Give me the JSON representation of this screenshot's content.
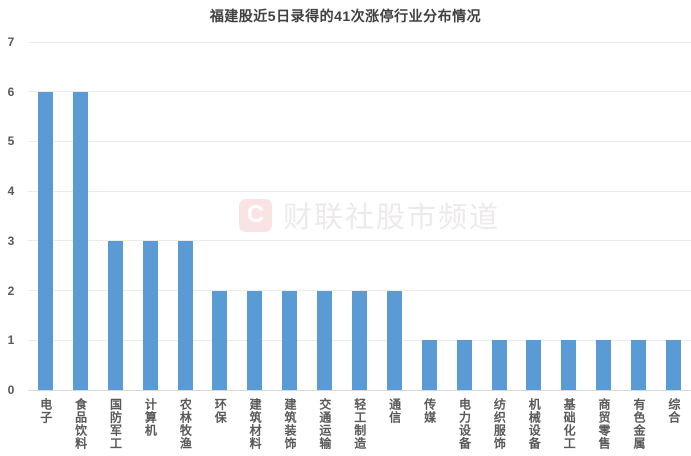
{
  "title": "福建股近5日录得的41次涨停行业分布情况",
  "watermark": {
    "logo_letter": "C",
    "text": "财联社股市频道"
  },
  "colors": {
    "bar": "#5B9BD5",
    "gridline": "#EBEBEB",
    "axis_line": "#D9D9D9",
    "title_text": "#404040",
    "tick_text": "#595959",
    "watermark_logo_bg": "#FAE3E3",
    "watermark_logo_letter": "#FFFFFF",
    "watermark_text": "#EDEAEA"
  },
  "chart_data": {
    "type": "bar",
    "title": "福建股近5日录得的41次涨停行业分布情况",
    "categories": [
      "电子",
      "食品饮料",
      "国防军工",
      "计算机",
      "农林牧渔",
      "环保",
      "建筑材料",
      "建筑装饰",
      "交通运输",
      "轻工制造",
      "通信",
      "传媒",
      "电力设备",
      "纺织服饰",
      "机械设备",
      "基础化工",
      "商贸零售",
      "有色金属",
      "综合"
    ],
    "values": [
      6,
      6,
      3,
      3,
      3,
      2,
      2,
      2,
      2,
      2,
      2,
      1,
      1,
      1,
      1,
      1,
      1,
      1,
      1
    ],
    "xlabel": "",
    "ylabel": "",
    "ylim": [
      0,
      7
    ],
    "yticks": [
      0,
      1,
      2,
      3,
      4,
      5,
      6,
      7
    ],
    "grid": "horizontal",
    "legend_position": "none",
    "bar_orientation": "vertical"
  }
}
